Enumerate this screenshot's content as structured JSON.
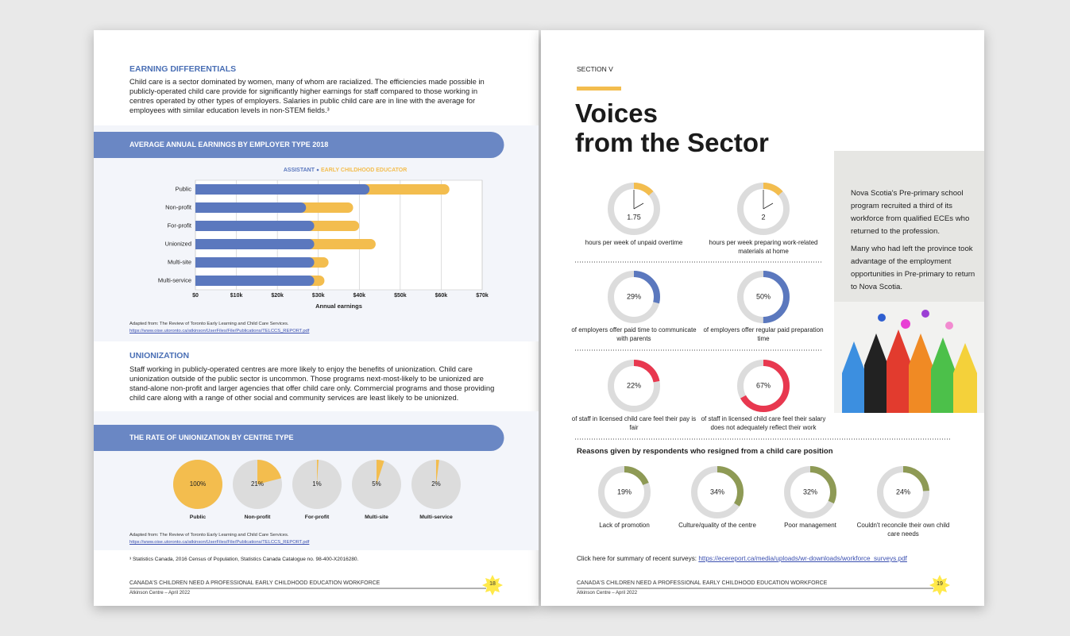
{
  "left_page": {
    "earning": {
      "heading": "EARNING DIFFERENTIALS",
      "text": "Child care is a sector dominated by women, many of whom are racialized. The efficiencies made possible in publicly-operated child care provide for significantly higher earnings for staff compared to those working in centres operated by other types of employers. Salaries in public child care are in line with the average for employees with similar education levels in non-STEM fields.³"
    },
    "unionization": {
      "heading": "UNIONIZATION",
      "text": "Staff working in publicly-operated centres are more likely to enjoy the benefits of unionization. Child care unionization outside of the public sector is uncommon. Those programs next-most-likely to be unionized are stand-alone non-profit and larger agencies that offer child care only. Commercial programs and those providing child care along with a range of other social and community services are least likely to be unionized."
    },
    "footnote": "³ Statistics Canada, 2016 Census of Population, Statistics Canada Catalogue no. 98-400-X2016280.",
    "footer": {
      "title": "CANADA'S CHILDREN NEED A PROFESSIONAL EARLY CHILDHOOD EDUCATION WORKFORCE",
      "org": "Atkinson Centre – April 2022",
      "page": "18"
    }
  },
  "right_page": {
    "section": "SECTION V",
    "title": [
      "Voices",
      "from the Sector"
    ],
    "hours": [
      {
        "value": "1.75",
        "caption": "hours per week of unpaid overtime"
      },
      {
        "value": "2",
        "caption": "hours per week preparing work-related materials at home"
      }
    ],
    "sidebar": [
      "Nova Scotia's Pre-primary school program recruited a third of its workforce from qualified ECEs who returned to the profession.",
      "Many who had left the province took advantage of the employment opportunities in Pre-primary to return to Nova Scotia."
    ],
    "survey_text": "Click here for summary of recent surveys:",
    "survey_url": "https://ecereport.ca/media/uploads/wr-downloads/workforce_surveys.pdf",
    "footer": {
      "title": "CANADA'S CHILDREN NEED A PROFESSIONAL EARLY CHILDHOOD EDUCATION WORKFORCE",
      "org": "Atkinson Centre – April 2022",
      "page": "19"
    }
  },
  "chart_data": [
    {
      "type": "bar",
      "title": "AVERAGE ANNUAL EARNINGS BY EMPLOYER TYPE 2018",
      "orientation": "horizontal",
      "categories": [
        "Public",
        "Non-profit",
        "For-profit",
        "Unionized",
        "Multi-site",
        "Multi-service"
      ],
      "series": [
        {
          "name": "ASSISTANT",
          "color": "#5b78be",
          "values": [
            42500,
            27000,
            29000,
            29000,
            29000,
            29000
          ]
        },
        {
          "name": "EARLY CHILDHOOD EDUCATOR",
          "color": "#f3bd4e",
          "values": [
            62000,
            38500,
            40000,
            44000,
            32500,
            31500
          ]
        }
      ],
      "xlabel": "Annual earnings",
      "xlim": [
        0,
        70000
      ],
      "xticks": [
        {
          "value": 0,
          "label": "$0"
        },
        {
          "value": 10000,
          "label": "$10k"
        },
        {
          "value": 20000,
          "label": "$20k"
        },
        {
          "value": 30000,
          "label": "$30k"
        },
        {
          "value": 40000,
          "label": "$40k"
        },
        {
          "value": 50000,
          "label": "$50k"
        },
        {
          "value": 60000,
          "label": "$60k"
        },
        {
          "value": 70000,
          "label": "$70k"
        }
      ],
      "grid": true,
      "source": "Adapted from: The Review of Toronto Early Learning and Child Care Services.",
      "source_url": "https://www.oise.utoronto.ca/atkinson/UserFiles/File/Publications/TELCCS_REPORT.pdf"
    },
    {
      "type": "pie",
      "title": "THE RATE OF UNIONIZATION BY CENTRE TYPE",
      "categories": [
        "Public",
        "Non-profit",
        "For-profit",
        "Multi-site",
        "Multi-service"
      ],
      "values": [
        100,
        21,
        1,
        5,
        2
      ],
      "value_labels": [
        "100%",
        "21%",
        "1%",
        "5%",
        "2%"
      ],
      "color": "#f3bd4e",
      "source": "Adapted from: The Review of Toronto Early Learning and Child Care Services.",
      "source_url": "https://www.oise.utoronto.ca/atkinson/UserFiles/File/Publications/TELCCS_REPORT.pdf"
    },
    {
      "type": "donut",
      "categories": [
        "of employers offer paid time to communicate with parents",
        "of employers offer regular paid preparation time"
      ],
      "values": [
        29,
        50
      ],
      "value_labels": [
        "29%",
        "50%"
      ],
      "color": "#5b78be"
    },
    {
      "type": "donut",
      "categories": [
        "of staff in licensed child care feel their pay is fair",
        "of staff in licensed child care feel their salary does not adequately reflect their work"
      ],
      "values": [
        22,
        67
      ],
      "value_labels": [
        "22%",
        "67%"
      ],
      "color": "#e8384f"
    },
    {
      "type": "donut",
      "title": "Reasons given by respondents who resigned from a child care position",
      "categories": [
        "Lack of promotion",
        "Culture/quality of the centre",
        "Poor management",
        "Couldn't reconcile their own child care needs"
      ],
      "values": [
        19,
        34,
        32,
        24
      ],
      "value_labels": [
        "19%",
        "34%",
        "32%",
        "24%"
      ],
      "color": "#8e9a55"
    }
  ]
}
